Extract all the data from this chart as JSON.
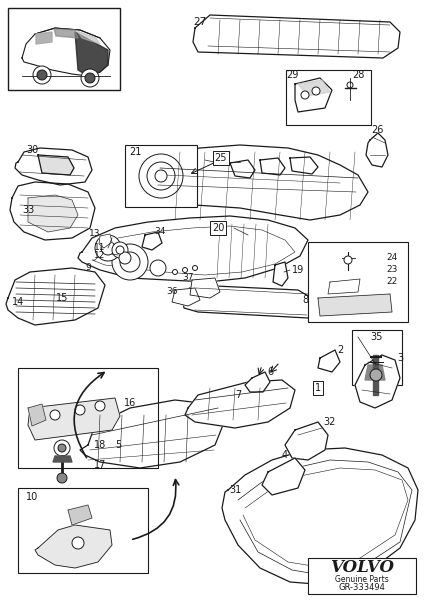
{
  "background_color": "#ffffff",
  "line_color": "#1a1a1a",
  "fig_width": 4.25,
  "fig_height": 6.01,
  "dpi": 100,
  "volvo_text": "VOLVO",
  "genuine_parts": "Genuine Parts",
  "part_number": "GR-333494"
}
